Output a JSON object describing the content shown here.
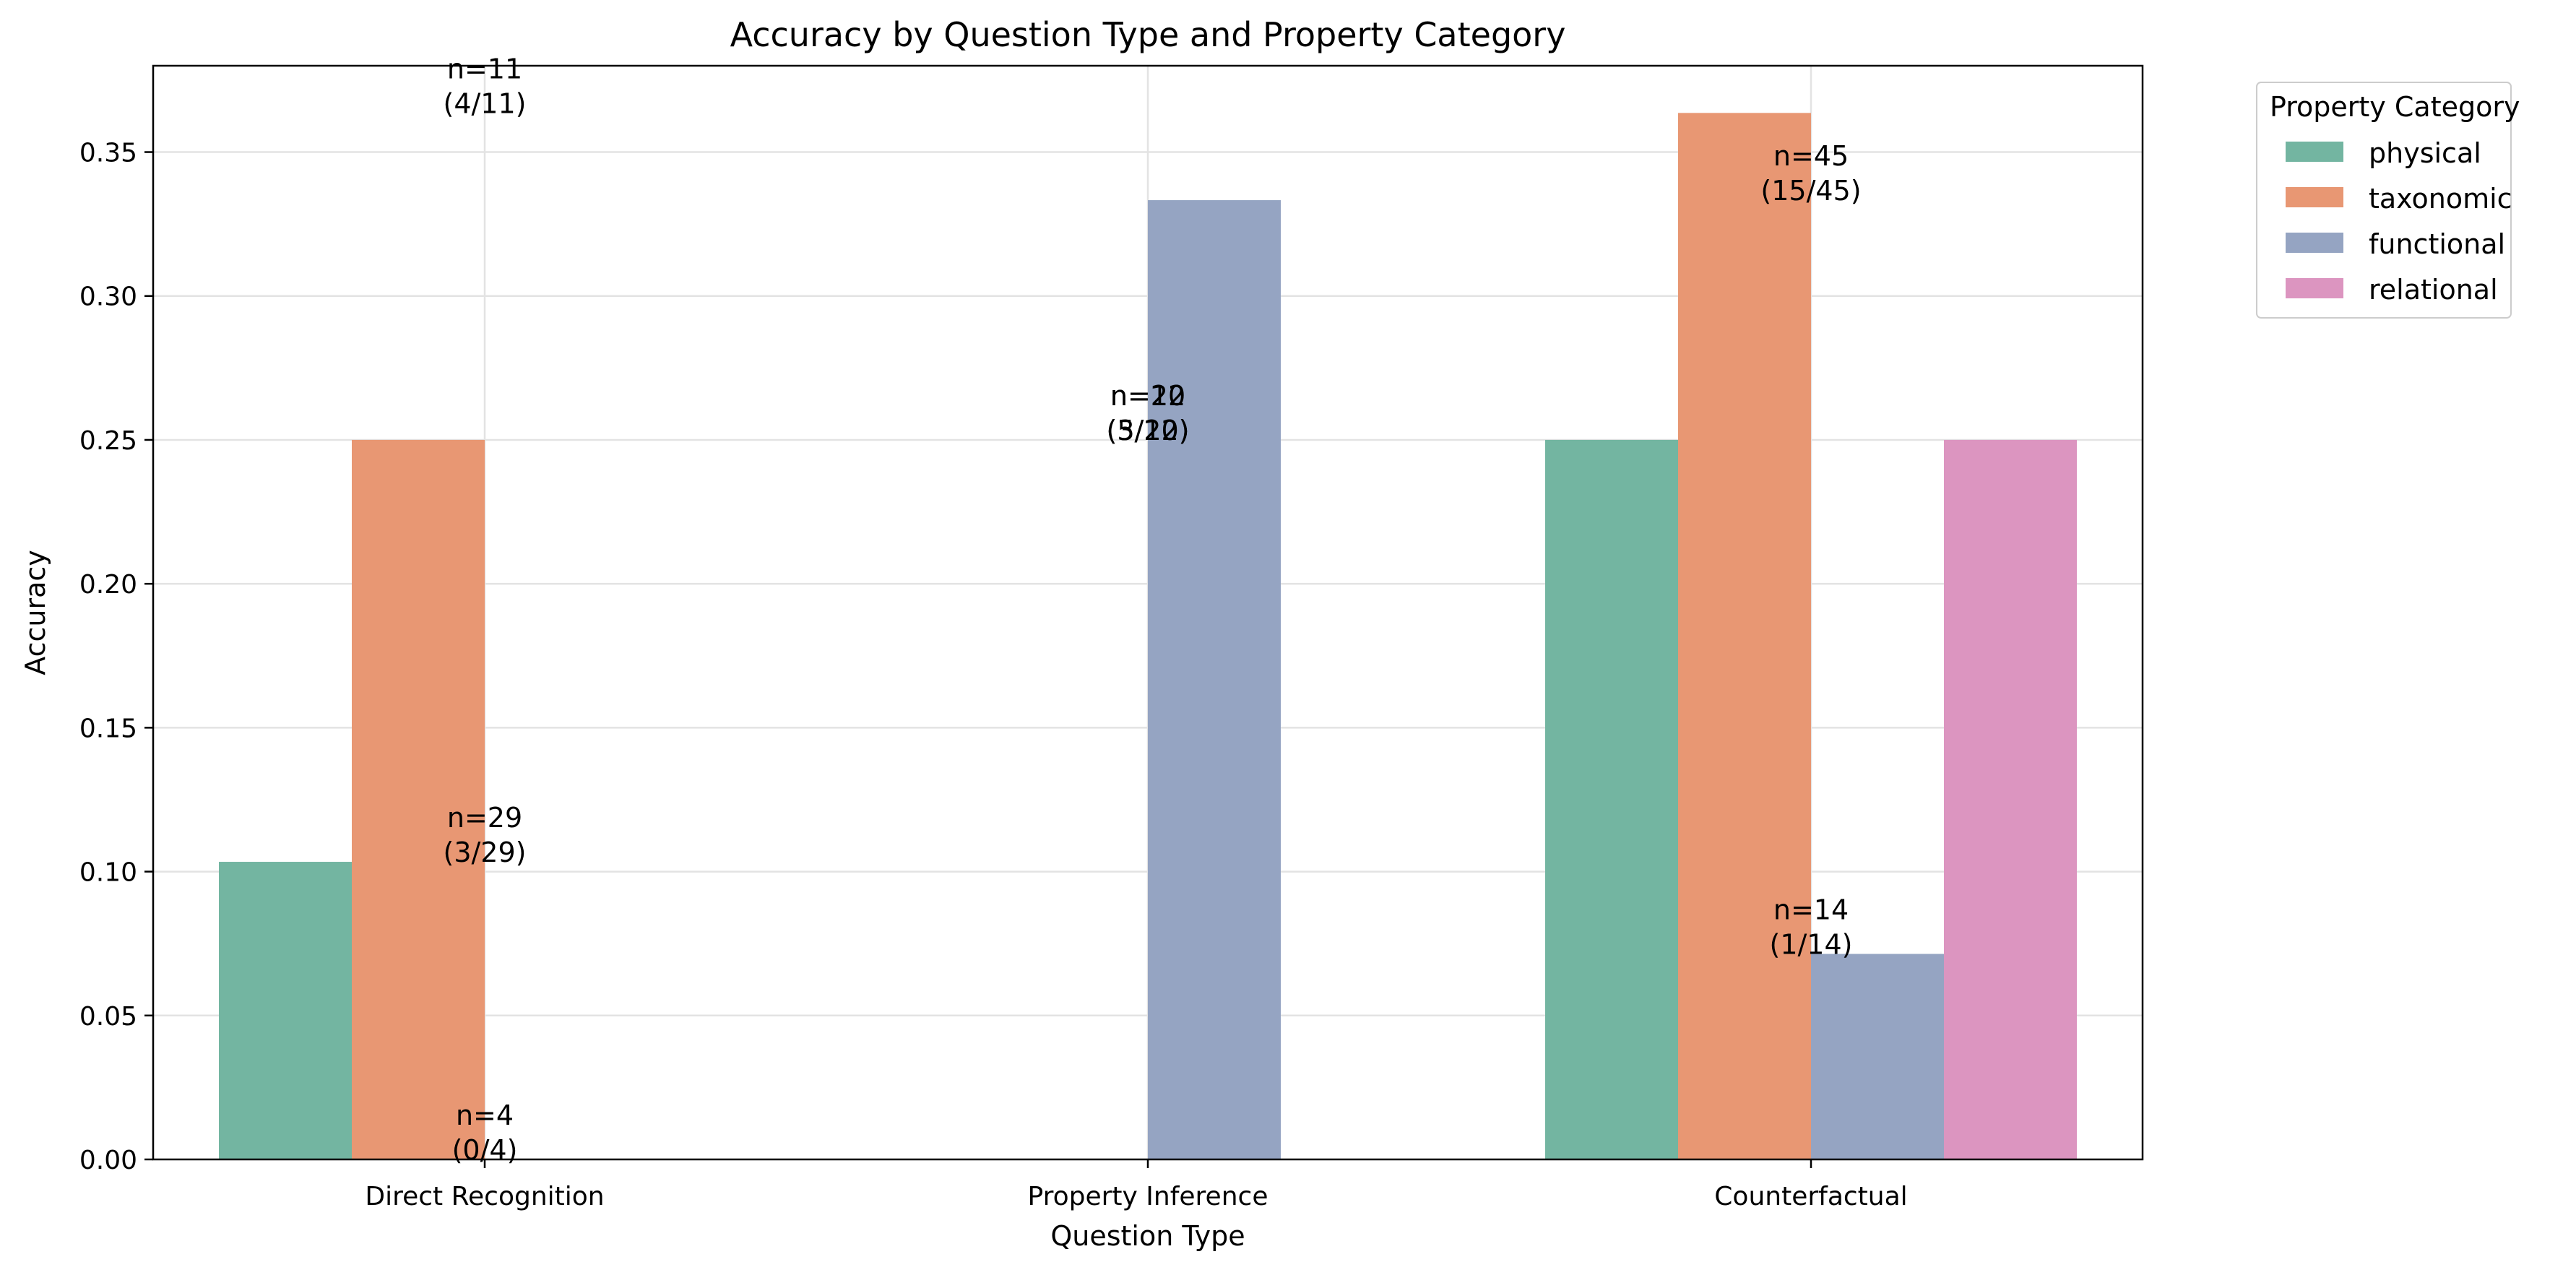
{
  "chart_data": {
    "type": "bar",
    "title": "Accuracy by Question Type and Property Category",
    "xlabel": "Question Type",
    "ylabel": "Accuracy",
    "categories": [
      "Direct Recognition",
      "Property Inference",
      "Counterfactual"
    ],
    "ylim": [
      0,
      0.38
    ],
    "yticks": [
      0.0,
      0.05,
      0.1,
      0.15,
      0.2,
      0.25,
      0.3,
      0.35
    ],
    "ytick_labels": [
      "0.00",
      "0.05",
      "0.10",
      "0.15",
      "0.20",
      "0.25",
      "0.30",
      "0.35"
    ],
    "grid": true,
    "legend": {
      "title": "Property Category",
      "placement": "outside-top-right"
    },
    "series": [
      {
        "name": "physical",
        "color": "#73b5a1",
        "values": [
          0.1034,
          null,
          0.25
        ]
      },
      {
        "name": "taxonomic",
        "color": "#e89773",
        "values": [
          0.25,
          null,
          0.3636
        ]
      },
      {
        "name": "functional",
        "color": "#95a4c2",
        "values": [
          null,
          0.3333,
          0.0714
        ]
      },
      {
        "name": "relational",
        "color": "#dc95c0",
        "values": [
          null,
          null,
          0.25
        ]
      }
    ],
    "annotations": [
      {
        "category": 0,
        "y": 0.1034,
        "lines": [
          "n=29",
          "(3/29)"
        ]
      },
      {
        "category": 0,
        "y": 0.3636,
        "lines": [
          "n=11",
          "(4/11)"
        ]
      },
      {
        "category": 0,
        "y": 0.0,
        "lines": [
          "n=4",
          "(0/4)"
        ]
      },
      {
        "category": 1,
        "y": 0.25,
        "lines": [
          "n=12",
          "(3/12)"
        ]
      },
      {
        "category": 1,
        "y": 0.25,
        "lines": [
          "n=20",
          "(5/20)"
        ]
      },
      {
        "category": 2,
        "y": 0.0714,
        "lines": [
          "n=14",
          "(1/14)"
        ]
      },
      {
        "category": 2,
        "y": 0.3333,
        "lines": [
          "n=45",
          "(15/45)"
        ]
      }
    ]
  }
}
